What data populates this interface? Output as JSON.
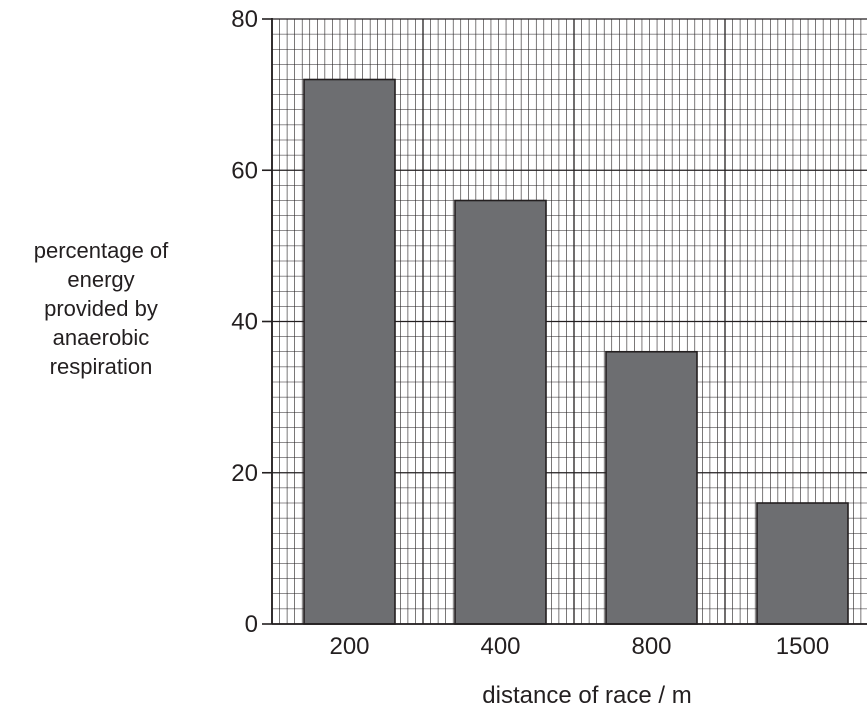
{
  "chart_data": {
    "type": "bar",
    "categories": [
      "200",
      "400",
      "800",
      "1500"
    ],
    "values": [
      72,
      56,
      36,
      16
    ],
    "xlabel": "distance of race / m",
    "ylabel_lines": [
      "percentage of",
      "energy",
      "provided by",
      "anaerobic",
      "respiration"
    ],
    "ylim": [
      0,
      80
    ],
    "yticks": [
      0,
      20,
      40,
      60,
      80
    ],
    "grid": true,
    "grid_minor_step": 2,
    "grid_major_step": 20,
    "colors": {
      "bar_fill": "#6d6e71",
      "grid_line": "#231f20",
      "text": "#231f20"
    }
  }
}
